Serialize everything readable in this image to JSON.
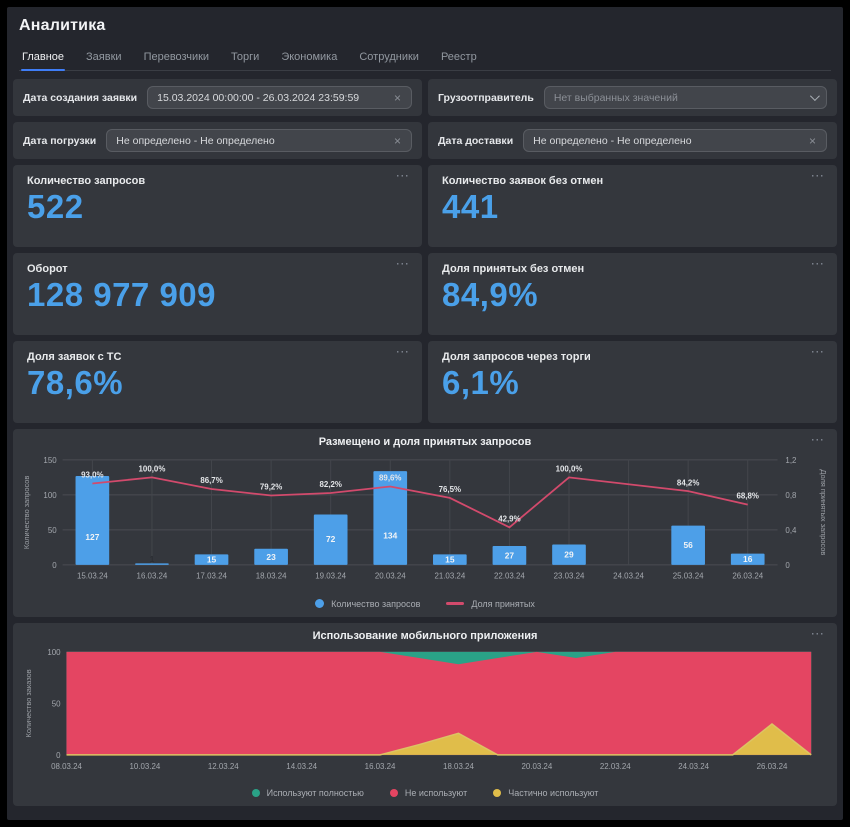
{
  "app": {
    "title": "Аналитика"
  },
  "tabs": [
    {
      "label": "Главное",
      "active": true
    },
    {
      "label": "Заявки",
      "active": false
    },
    {
      "label": "Перевозчики",
      "active": false
    },
    {
      "label": "Торги",
      "active": false
    },
    {
      "label": "Экономика",
      "active": false
    },
    {
      "label": "Сотрудники",
      "active": false
    },
    {
      "label": "Реестр",
      "active": false
    }
  ],
  "icons": {
    "more_menu": "···",
    "clear": "×",
    "chevron": "chevron-down"
  },
  "filters": [
    {
      "label": "Дата создания заявки",
      "value": "15.03.2024 00:00:00 - 26.03.2024 23:59:59",
      "control": "clear",
      "muted": false
    },
    {
      "label": "Грузоотправитель",
      "value": "Нет выбранных значений",
      "control": "chevron",
      "muted": true
    },
    {
      "label": "Дата погрузки",
      "value": "Не определено - Не определено",
      "control": "clear",
      "muted": false
    },
    {
      "label": "Дата доставки",
      "value": "Не определено - Не определено",
      "control": "clear",
      "muted": false
    }
  ],
  "kpis": [
    {
      "label": "Количество запросов",
      "value": "522"
    },
    {
      "label": "Количество заявок без отмен",
      "value": "441"
    },
    {
      "label": "Оборот",
      "value": "128 977 909"
    },
    {
      "label": "Доля принятых без отмен",
      "value": "84,9%"
    },
    {
      "label": "Доля заявок с ТС",
      "value": "78,6%"
    },
    {
      "label": "Доля запросов через торги",
      "value": "6,1%"
    }
  ],
  "chart_data": [
    {
      "type": "bar+line",
      "title": "Размещено и доля принятых запросов",
      "categories": [
        "15.03.24",
        "16.03.24",
        "17.03.24",
        "18.03.24",
        "19.03.24",
        "20.03.24",
        "21.03.24",
        "22.03.24",
        "23.03.24",
        "24.03.24",
        "25.03.24",
        "26.03.24"
      ],
      "series": [
        {
          "name": "Количество запросов",
          "kind": "bar",
          "color": "#4d9fe8",
          "values": [
            127,
            1,
            15,
            23,
            72,
            134,
            15,
            27,
            29,
            null,
            56,
            16
          ]
        },
        {
          "name": "Доля принятых",
          "kind": "line",
          "color": "#d24a6c",
          "values_percent": [
            93.0,
            100.0,
            86.7,
            79.2,
            82.2,
            89.6,
            76.5,
            42.9,
            100.0,
            null,
            84.2,
            68.8
          ],
          "point_labels": [
            "93,0%",
            "100,0%",
            "86,7%",
            "79,2%",
            "82,2%",
            "89,6%",
            "76,5%",
            "42,9%",
            "100,0%",
            null,
            "84,2%",
            "68,8%"
          ]
        }
      ],
      "axis_left": {
        "label": "Количество запросов",
        "ticks": [
          0,
          50,
          100,
          150
        ],
        "lim": [
          0,
          150
        ]
      },
      "axis_right": {
        "label": "Доля принятых запросов",
        "ticks": [
          "0",
          "0,4",
          "0,8",
          "1,2"
        ],
        "lim": [
          0,
          1.2
        ]
      },
      "legend": [
        {
          "label": "Количество запросов",
          "swatch": "dot",
          "color": "#4d9fe8"
        },
        {
          "label": "Доля принятых",
          "swatch": "line",
          "color": "#d24a6c"
        }
      ]
    },
    {
      "type": "area",
      "title": "Использование мобильного приложения",
      "x_tick_labels": [
        "08.03.24",
        "10.03.24",
        "12.03.24",
        "14.03.24",
        "16.03.24",
        "18.03.24",
        "20.03.24",
        "22.03.24",
        "24.03.24",
        "26.03.24"
      ],
      "n_points": 20,
      "axis_y": {
        "label": "Количество заказов",
        "ticks": [
          0,
          50,
          100
        ],
        "lim": [
          0,
          100
        ]
      },
      "series": [
        {
          "name": "Используют полностью",
          "color": "#2aa287",
          "values": [
            0,
            0,
            0,
            0,
            0,
            0,
            0,
            0,
            0,
            6,
            12,
            6,
            0,
            6,
            0,
            0,
            0,
            0,
            0,
            0
          ]
        },
        {
          "name": "Не используют",
          "color": "#e44562",
          "values": [
            100,
            100,
            100,
            100,
            100,
            100,
            100,
            100,
            100,
            84,
            67,
            94,
            100,
            94,
            100,
            100,
            100,
            100,
            70,
            100
          ]
        },
        {
          "name": "Частично используют",
          "color": "#e0bd4a",
          "values": [
            0,
            0,
            0,
            0,
            0,
            0,
            0,
            0,
            0,
            10,
            21,
            0,
            0,
            0,
            0,
            0,
            0,
            0,
            30,
            0
          ]
        }
      ],
      "legend": [
        "Используют полностью",
        "Не используют",
        "Частично используют"
      ]
    }
  ],
  "colors": {
    "accent_blue": "#4aa0e9",
    "bar_blue": "#4d9fe8",
    "line_pink": "#d24a6c",
    "area_red": "#e44562",
    "area_green": "#2aa287",
    "area_yellow": "#e0bd4a",
    "tab_underline": "#3f7df6",
    "grid": "#4a4d53",
    "axis_text": "#a3a7ad"
  }
}
